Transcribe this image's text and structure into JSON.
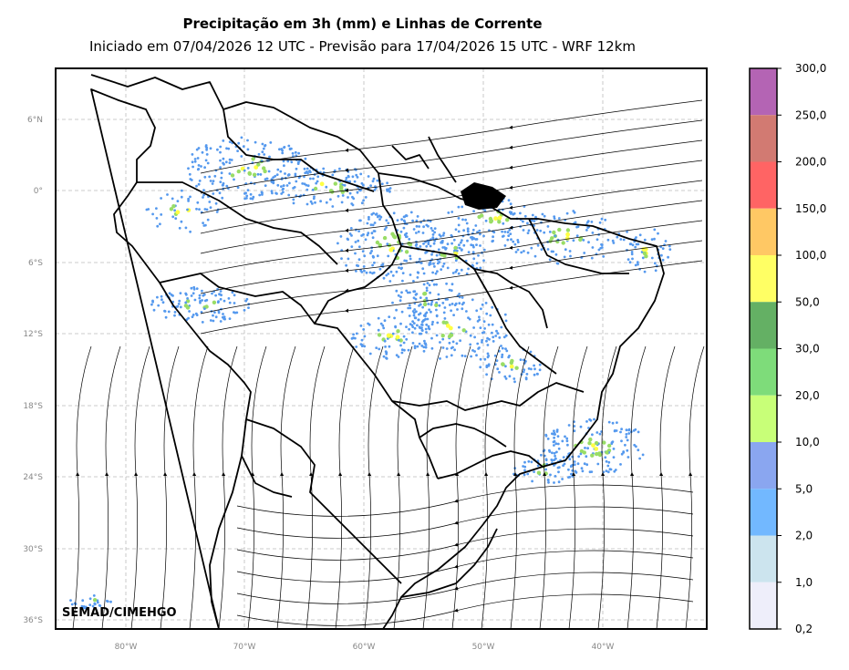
{
  "title": "Precipitação em 3h (mm) e Linhas de Corrente",
  "subtitle": "Iniciado em 07/04/2026 12 UTC - Previsão para 17/04/2026 15 UTC - WRF 12km",
  "credit": "SEMAD/CIMEHGO",
  "lat_labels": [
    "6°N",
    "0°",
    "6°S",
    "12°S",
    "18°S",
    "24°S",
    "30°S",
    "36°S"
  ],
  "lon_labels": [
    "80°W",
    "70°W",
    "60°W",
    "50°W",
    "40°W"
  ],
  "colorbar": {
    "labels": [
      "0,2",
      "1,0",
      "2,0",
      "5,0",
      "10,0",
      "20,0",
      "30,0",
      "50,0",
      "100,0",
      "150,0",
      "200,0",
      "250,0",
      "300,0"
    ],
    "colors": [
      "#eeeefa",
      "#cce4ee",
      "#72b8ff",
      "#8aa6f0",
      "#c8ff78",
      "#7edc7a",
      "#64b064",
      "#ffff64",
      "#ffc864",
      "#ff6464",
      "#d27a72",
      "#b464b4"
    ]
  },
  "style": {
    "map_background": "#ffffff",
    "grid_color": "#bbbbbb",
    "rain_light": "#5599ee",
    "rain_mid": "#99dd66",
    "rain_heavy": "#ffff44"
  }
}
